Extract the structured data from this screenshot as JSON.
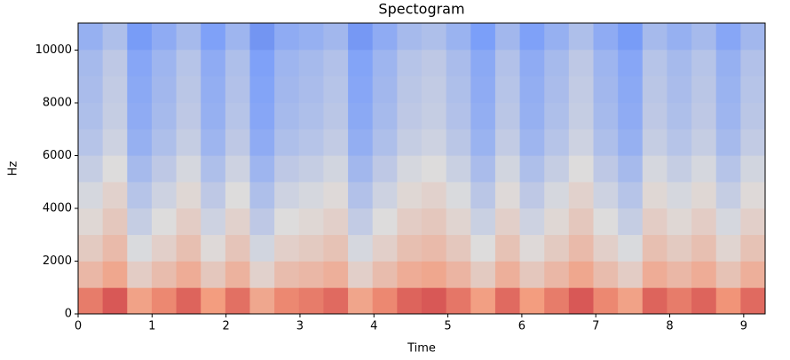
{
  "chart_data": {
    "type": "spectrogram",
    "title": "Spectogram",
    "x_label": "Time",
    "y_label": "Hz",
    "xlim": [
      0,
      9.29
    ],
    "ylim": [
      0,
      11025
    ],
    "xticks": [
      0,
      1,
      2,
      3,
      4,
      5,
      6,
      7,
      8,
      9
    ],
    "yticks": [
      0,
      2000,
      4000,
      6000,
      8000,
      10000
    ],
    "colormap": "coolwarm",
    "z": [
      [
        0.8,
        0.86,
        0.72,
        0.78,
        0.84,
        0.74,
        0.82,
        0.7,
        0.78,
        0.8,
        0.83,
        0.71,
        0.78,
        0.84,
        0.86,
        0.81,
        0.73,
        0.83,
        0.74,
        0.8,
        0.86,
        0.78,
        0.72,
        0.84,
        0.8,
        0.84,
        0.76,
        0.83
      ],
      [
        0.64,
        0.7,
        0.56,
        0.62,
        0.68,
        0.58,
        0.66,
        0.54,
        0.62,
        0.64,
        0.67,
        0.55,
        0.62,
        0.68,
        0.7,
        0.65,
        0.57,
        0.67,
        0.58,
        0.64,
        0.7,
        0.62,
        0.56,
        0.68,
        0.64,
        0.68,
        0.6,
        0.67
      ],
      [
        0.57,
        0.63,
        0.49,
        0.55,
        0.61,
        0.51,
        0.59,
        0.47,
        0.55,
        0.57,
        0.6,
        0.48,
        0.55,
        0.61,
        0.63,
        0.58,
        0.5,
        0.6,
        0.51,
        0.57,
        0.63,
        0.55,
        0.49,
        0.61,
        0.57,
        0.61,
        0.53,
        0.6
      ],
      [
        0.52,
        0.58,
        0.44,
        0.5,
        0.56,
        0.46,
        0.54,
        0.42,
        0.5,
        0.52,
        0.55,
        0.43,
        0.5,
        0.56,
        0.58,
        0.53,
        0.45,
        0.55,
        0.46,
        0.52,
        0.58,
        0.5,
        0.44,
        0.56,
        0.52,
        0.56,
        0.48,
        0.55
      ],
      [
        0.48,
        0.54,
        0.4,
        0.46,
        0.52,
        0.42,
        0.5,
        0.38,
        0.46,
        0.48,
        0.51,
        0.39,
        0.46,
        0.52,
        0.54,
        0.49,
        0.41,
        0.51,
        0.42,
        0.48,
        0.54,
        0.46,
        0.4,
        0.52,
        0.48,
        0.52,
        0.44,
        0.51
      ],
      [
        0.44,
        0.5,
        0.36,
        0.42,
        0.48,
        0.38,
        0.46,
        0.34,
        0.42,
        0.44,
        0.47,
        0.35,
        0.42,
        0.48,
        0.5,
        0.45,
        0.37,
        0.47,
        0.38,
        0.44,
        0.5,
        0.42,
        0.36,
        0.48,
        0.44,
        0.48,
        0.4,
        0.47
      ],
      [
        0.4,
        0.46,
        0.32,
        0.38,
        0.44,
        0.34,
        0.42,
        0.3,
        0.38,
        0.4,
        0.43,
        0.31,
        0.38,
        0.44,
        0.46,
        0.41,
        0.33,
        0.43,
        0.34,
        0.4,
        0.46,
        0.38,
        0.32,
        0.44,
        0.4,
        0.44,
        0.36,
        0.43
      ],
      [
        0.38,
        0.44,
        0.3,
        0.36,
        0.42,
        0.32,
        0.4,
        0.28,
        0.36,
        0.38,
        0.41,
        0.29,
        0.36,
        0.42,
        0.44,
        0.39,
        0.31,
        0.41,
        0.32,
        0.38,
        0.44,
        0.36,
        0.3,
        0.42,
        0.38,
        0.42,
        0.34,
        0.41
      ],
      [
        0.37,
        0.43,
        0.29,
        0.35,
        0.41,
        0.31,
        0.39,
        0.27,
        0.35,
        0.37,
        0.4,
        0.28,
        0.35,
        0.41,
        0.43,
        0.38,
        0.3,
        0.4,
        0.31,
        0.37,
        0.43,
        0.35,
        0.29,
        0.41,
        0.37,
        0.41,
        0.33,
        0.4
      ],
      [
        0.36,
        0.42,
        0.28,
        0.34,
        0.4,
        0.3,
        0.38,
        0.26,
        0.34,
        0.36,
        0.39,
        0.27,
        0.34,
        0.4,
        0.42,
        0.37,
        0.29,
        0.39,
        0.3,
        0.36,
        0.42,
        0.34,
        0.28,
        0.4,
        0.36,
        0.4,
        0.32,
        0.39
      ],
      [
        0.32,
        0.38,
        0.24,
        0.3,
        0.36,
        0.26,
        0.34,
        0.22,
        0.3,
        0.32,
        0.35,
        0.23,
        0.3,
        0.36,
        0.38,
        0.33,
        0.25,
        0.35,
        0.26,
        0.32,
        0.38,
        0.3,
        0.24,
        0.36,
        0.32,
        0.36,
        0.28,
        0.35
      ]
    ]
  }
}
